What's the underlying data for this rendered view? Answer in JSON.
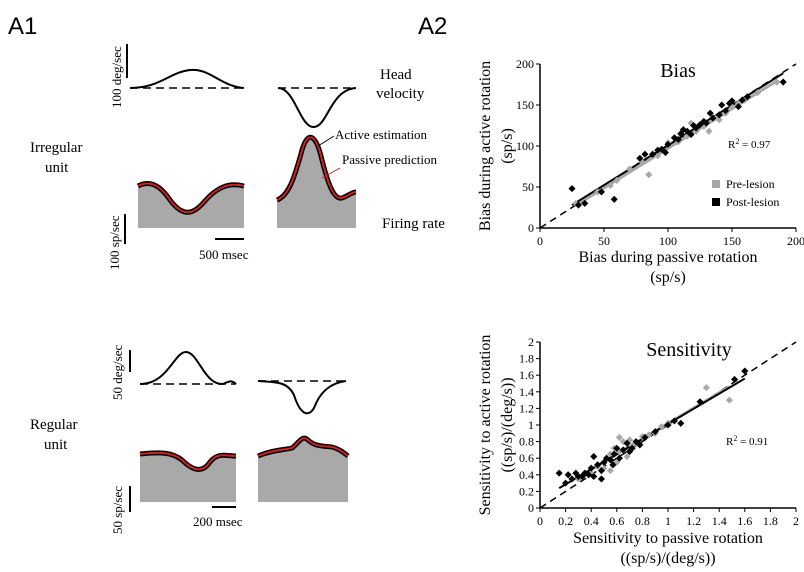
{
  "panel_labels": {
    "a1": "A1",
    "a2": "A2"
  },
  "a1": {
    "irregular": {
      "unit_label_1": "Irregular",
      "unit_label_2": "unit",
      "velocity_scale": "100 deg/sec",
      "head_label_1": "Head",
      "head_label_2": "velocity",
      "active_label": "Active estimation",
      "passive_label": "Passive prediction",
      "passive_color": "#cc2222",
      "firing_rate_label": "Firing rate",
      "rate_scale": "100 sp/sec",
      "time_scale": "500 msec"
    },
    "regular": {
      "unit_label_1": "Regular",
      "unit_label_2": "unit",
      "velocity_scale": "50 deg/sec",
      "rate_scale": "50 sp/sec",
      "time_scale": "200 msec"
    }
  },
  "chart_data": [
    {
      "type": "scatter",
      "title": "Bias",
      "xlabel": "Bias during passive rotation",
      "xlabel_unit": "(sp/s)",
      "ylabel": "Bias during active rotation",
      "ylabel_unit": "(sp/s)",
      "xlim": [
        0,
        200
      ],
      "ylim": [
        0,
        200
      ],
      "x_ticks": [
        "0",
        "50",
        "100",
        "150",
        "200"
      ],
      "y_ticks": [
        "0",
        "50",
        "100",
        "150",
        "200"
      ],
      "r2_label": "R",
      "r2_value": "= 0.97",
      "legend": [
        "Pre-lesion",
        "Post-lesion"
      ],
      "legend_position": "right",
      "series": [
        {
          "name": "Pre-lesion",
          "color": "#a8a8a8",
          "points": [
            [
              28,
              30
            ],
            [
              45,
              44
            ],
            [
              60,
              58
            ],
            [
              70,
              72
            ],
            [
              80,
              80
            ],
            [
              85,
              65
            ],
            [
              92,
              88
            ],
            [
              100,
              104
            ],
            [
              108,
              105
            ],
            [
              115,
              112
            ],
            [
              122,
              118
            ],
            [
              128,
              124
            ],
            [
              132,
              118
            ],
            [
              138,
              135
            ],
            [
              145,
              140
            ],
            [
              150,
              148
            ],
            [
              155,
              152
            ],
            [
              160,
              156
            ],
            [
              170,
              165
            ],
            [
              185,
              178
            ],
            [
              55,
              52
            ],
            [
              95,
              95
            ],
            [
              118,
              128
            ],
            [
              140,
              132
            ]
          ]
        },
        {
          "name": "Post-lesion",
          "color": "#000000",
          "points": [
            [
              25,
              48
            ],
            [
              30,
              28
            ],
            [
              35,
              30
            ],
            [
              48,
              44
            ],
            [
              58,
              35
            ],
            [
              78,
              85
            ],
            [
              82,
              90
            ],
            [
              88,
              90
            ],
            [
              92,
              95
            ],
            [
              95,
              96
            ],
            [
              98,
              92
            ],
            [
              100,
              102
            ],
            [
              105,
              110
            ],
            [
              108,
              108
            ],
            [
              110,
              115
            ],
            [
              115,
              118
            ],
            [
              118,
              114
            ],
            [
              120,
              125
            ],
            [
              122,
              122
            ],
            [
              125,
              126
            ],
            [
              128,
              130
            ],
            [
              130,
              128
            ],
            [
              135,
              134
            ],
            [
              140,
              138
            ],
            [
              142,
              150
            ],
            [
              145,
              143
            ],
            [
              148,
              152
            ],
            [
              150,
              155
            ],
            [
              155,
              148
            ],
            [
              158,
              156
            ],
            [
              162,
              160
            ],
            [
              190,
              178
            ],
            [
              112,
              120
            ],
            [
              133,
              140
            ]
          ]
        }
      ]
    },
    {
      "type": "scatter",
      "title": "Sensitivity",
      "xlabel": "Sensitivity to passive rotation",
      "xlabel_unit": "((sp/s)/(deg/s))",
      "ylabel": "Sensitivity to active rotation",
      "ylabel_unit": "((sp/s)/(deg/s))",
      "xlim": [
        0,
        2
      ],
      "ylim": [
        0,
        2
      ],
      "x_ticks": [
        "0",
        "0.2",
        "0.4",
        "0.6",
        "0.8",
        "1",
        "1.2",
        "1.4",
        "1.6",
        "1.8",
        "2"
      ],
      "y_ticks": [
        "0",
        "0.2",
        "0.4",
        "0.6",
        "0.8",
        "1",
        "1.2",
        "1.4",
        "1.6",
        "1.8",
        "2"
      ],
      "r2_label": "R",
      "r2_value": "= 0.91",
      "series": [
        {
          "name": "Pre-lesion",
          "color": "#a8a8a8",
          "points": [
            [
              0.3,
              0.35
            ],
            [
              0.4,
              0.42
            ],
            [
              0.45,
              0.5
            ],
            [
              0.5,
              0.48
            ],
            [
              0.55,
              0.65
            ],
            [
              0.58,
              0.72
            ],
            [
              0.6,
              0.55
            ],
            [
              0.62,
              0.68
            ],
            [
              0.65,
              0.8
            ],
            [
              0.68,
              0.62
            ],
            [
              0.7,
              0.82
            ],
            [
              0.72,
              0.75
            ],
            [
              0.75,
              0.78
            ],
            [
              0.8,
              0.86
            ],
            [
              0.85,
              0.88
            ],
            [
              0.9,
              0.9
            ],
            [
              0.95,
              0.98
            ],
            [
              1.0,
              1.02
            ],
            [
              1.3,
              1.45
            ],
            [
              1.48,
              1.3
            ],
            [
              0.55,
              0.45
            ],
            [
              0.62,
              0.85
            ]
          ]
        },
        {
          "name": "Post-lesion",
          "color": "#000000",
          "points": [
            [
              0.15,
              0.42
            ],
            [
              0.2,
              0.3
            ],
            [
              0.22,
              0.4
            ],
            [
              0.25,
              0.35
            ],
            [
              0.3,
              0.38
            ],
            [
              0.35,
              0.42
            ],
            [
              0.38,
              0.4
            ],
            [
              0.4,
              0.48
            ],
            [
              0.42,
              0.38
            ],
            [
              0.45,
              0.52
            ],
            [
              0.48,
              0.45
            ],
            [
              0.5,
              0.55
            ],
            [
              0.52,
              0.6
            ],
            [
              0.55,
              0.58
            ],
            [
              0.58,
              0.65
            ],
            [
              0.6,
              0.72
            ],
            [
              0.62,
              0.6
            ],
            [
              0.65,
              0.7
            ],
            [
              0.68,
              0.78
            ],
            [
              0.7,
              0.68
            ],
            [
              0.72,
              0.72
            ],
            [
              0.75,
              0.8
            ],
            [
              0.78,
              0.76
            ],
            [
              0.82,
              0.85
            ],
            [
              0.9,
              0.92
            ],
            [
              1.0,
              1.0
            ],
            [
              1.05,
              1.05
            ],
            [
              1.1,
              1.02
            ],
            [
              1.25,
              1.28
            ],
            [
              1.52,
              1.55
            ],
            [
              1.6,
              1.65
            ],
            [
              0.28,
              0.42
            ],
            [
              0.33,
              0.38
            ],
            [
              0.42,
              0.62
            ],
            [
              0.48,
              0.35
            ],
            [
              0.57,
              0.52
            ]
          ]
        }
      ]
    }
  ]
}
